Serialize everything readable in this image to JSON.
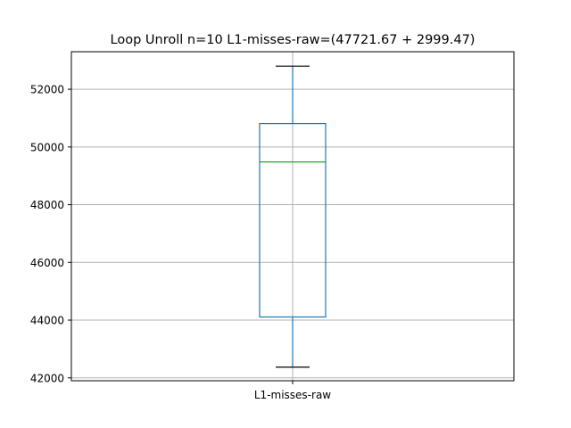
{
  "chart_data": {
    "type": "box",
    "title": "Loop Unroll n=10  L1-misses-raw=(47721.67 + 2999.47)",
    "xlabel": "",
    "ylabel": "",
    "categories": [
      "L1-misses-raw"
    ],
    "boxes": [
      {
        "name": "L1-misses-raw",
        "whisker_low": 42370,
        "q1": 44110,
        "median": 49480,
        "q3": 50810,
        "whisker_high": 52800
      }
    ],
    "ylim": [
      41900,
      53300
    ],
    "yticks": [
      42000,
      44000,
      46000,
      48000,
      50000,
      52000
    ],
    "grid": true,
    "colors": {
      "box": "#1f77b4",
      "median": "#2ca02c",
      "grid": "#b0b0b0",
      "axis": "#000000"
    }
  }
}
